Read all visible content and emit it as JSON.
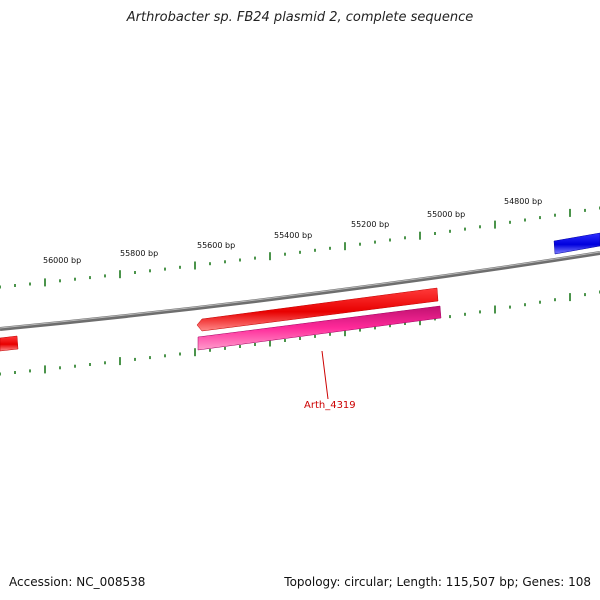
{
  "title": "Arthrobacter sp. FB24 plasmid 2, complete sequence",
  "footer": {
    "accession": "Accession: NC_008538",
    "summary": "Topology: circular; Length: 115,507 bp; Genes: 108"
  },
  "map": {
    "tick_labels": [
      "56000 bp",
      "55800 bp",
      "55600 bp",
      "55400 bp",
      "55200 bp",
      "55000 bp",
      "54800 bp"
    ],
    "gene_label": "Arth_4319",
    "colors": {
      "backbone": "#7a7a7a",
      "tick": "#1e7a1e",
      "forward_gene": "#0000ee",
      "reverse_gene": "#ee0000",
      "cds": "#ee2a8c",
      "label": "#cc0000"
    }
  }
}
